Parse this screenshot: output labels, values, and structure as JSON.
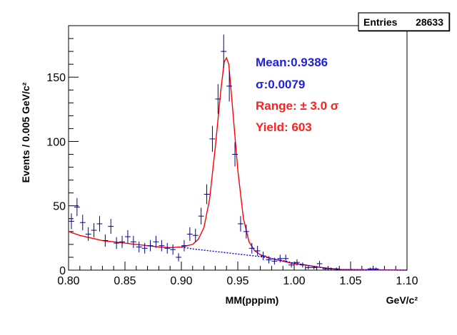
{
  "chart_data": {
    "type": "scatter",
    "xlabel": "MM(pppim)",
    "xunit": "GeV/c²",
    "ylabel": "Events / 0.005 GeV/c²",
    "xlim": [
      0.8,
      1.1
    ],
    "ylim": [
      0,
      190
    ],
    "x_ticks": [
      0.8,
      0.85,
      0.9,
      0.95,
      1.0,
      1.05,
      1.1
    ],
    "x_tick_labels": [
      "0.80",
      "0.85",
      "0.90",
      "0.95",
      "1.00",
      "1.05",
      "1.10"
    ],
    "y_ticks": [
      0,
      50,
      100,
      150
    ],
    "y_tick_labels": [
      "0",
      "50",
      "100",
      "150"
    ],
    "grid": false,
    "stats_box": {
      "label": "Entries",
      "value": "28633"
    },
    "annotations": [
      {
        "text": "Mean:0.9386",
        "color": "#2020e0"
      },
      {
        "text": "σ:0.0079",
        "color": "#2020e0"
      },
      {
        "text": "Range: ± 3.0 σ",
        "color": "#ff2020"
      },
      {
        "text": "Yield: 603",
        "color": "#ff2020"
      }
    ],
    "histogram_bin_width": 0.005,
    "series": [
      {
        "kind": "data-points-with-errors",
        "color": "#00008b",
        "points": [
          [
            0.8025,
            38
          ],
          [
            0.8075,
            49
          ],
          [
            0.8125,
            37
          ],
          [
            0.8175,
            28
          ],
          [
            0.8225,
            31
          ],
          [
            0.8275,
            36
          ],
          [
            0.8325,
            23
          ],
          [
            0.8375,
            34
          ],
          [
            0.8425,
            21
          ],
          [
            0.8475,
            22
          ],
          [
            0.8525,
            26
          ],
          [
            0.8575,
            22
          ],
          [
            0.8625,
            18
          ],
          [
            0.8675,
            17
          ],
          [
            0.8725,
            19
          ],
          [
            0.8775,
            22
          ],
          [
            0.8825,
            19
          ],
          [
            0.8875,
            17
          ],
          [
            0.8925,
            16
          ],
          [
            0.8975,
            10
          ],
          [
            0.9025,
            19
          ],
          [
            0.9075,
            28
          ],
          [
            0.9125,
            27
          ],
          [
            0.9175,
            42
          ],
          [
            0.9225,
            59
          ],
          [
            0.9275,
            102
          ],
          [
            0.9325,
            133
          ],
          [
            0.9375,
            170
          ],
          [
            0.9425,
            143
          ],
          [
            0.9475,
            90
          ],
          [
            0.9525,
            36
          ],
          [
            0.9575,
            30
          ],
          [
            0.9625,
            17
          ],
          [
            0.9675,
            15
          ],
          [
            0.9725,
            11
          ],
          [
            0.9775,
            8
          ],
          [
            0.9825,
            7
          ],
          [
            0.9875,
            9
          ],
          [
            0.9925,
            9
          ],
          [
            0.9975,
            4
          ],
          [
            1.0025,
            6
          ],
          [
            1.0075,
            4
          ],
          [
            1.0125,
            2
          ],
          [
            1.0175,
            2
          ],
          [
            1.0225,
            5
          ],
          [
            1.0275,
            1
          ],
          [
            1.0325,
            1
          ],
          [
            1.0375,
            1
          ],
          [
            1.0425,
            0
          ],
          [
            1.0475,
            0
          ],
          [
            1.0525,
            0
          ],
          [
            1.0575,
            0
          ],
          [
            1.0625,
            0
          ],
          [
            1.0675,
            1
          ],
          [
            1.0725,
            1
          ],
          [
            1.0775,
            0
          ],
          [
            1.0825,
            0
          ],
          [
            1.0875,
            0
          ],
          [
            1.0925,
            0
          ],
          [
            1.0975,
            0
          ]
        ]
      },
      {
        "kind": "fit-curve",
        "color": "#ff0000",
        "points": [
          [
            0.8,
            30
          ],
          [
            0.81,
            27
          ],
          [
            0.82,
            25
          ],
          [
            0.83,
            23
          ],
          [
            0.84,
            22
          ],
          [
            0.85,
            21
          ],
          [
            0.86,
            20
          ],
          [
            0.87,
            19
          ],
          [
            0.88,
            18
          ],
          [
            0.89,
            17.5
          ],
          [
            0.9,
            18
          ],
          [
            0.91,
            20
          ],
          [
            0.915,
            24
          ],
          [
            0.92,
            33
          ],
          [
            0.925,
            55
          ],
          [
            0.93,
            95
          ],
          [
            0.935,
            140
          ],
          [
            0.938,
            162
          ],
          [
            0.94,
            165
          ],
          [
            0.942,
            160
          ],
          [
            0.945,
            130
          ],
          [
            0.95,
            78
          ],
          [
            0.955,
            40
          ],
          [
            0.96,
            22
          ],
          [
            0.965,
            15
          ],
          [
            0.97,
            12
          ],
          [
            0.98,
            9
          ],
          [
            0.99,
            7
          ],
          [
            1.0,
            5
          ],
          [
            1.01,
            4
          ],
          [
            1.02,
            2.5
          ],
          [
            1.03,
            1.5
          ],
          [
            1.035,
            1
          ],
          [
            1.04,
            0.5
          ],
          [
            1.1,
            0
          ]
        ]
      },
      {
        "kind": "background-curve",
        "color": "#0000ff",
        "points": [
          [
            0.9,
            18
          ],
          [
            0.91,
            16.5
          ],
          [
            0.92,
            15.5
          ],
          [
            0.93,
            14.5
          ],
          [
            0.94,
            13.5
          ],
          [
            0.95,
            12.5
          ],
          [
            0.96,
            11.5
          ],
          [
            0.97,
            10.5
          ],
          [
            0.98,
            9
          ],
          [
            0.99,
            7.5
          ],
          [
            1.0,
            5.5
          ],
          [
            1.01,
            4
          ],
          [
            1.02,
            2.5
          ],
          [
            1.03,
            1.2
          ],
          [
            1.04,
            0.5
          ],
          [
            1.1,
            0
          ]
        ]
      }
    ]
  }
}
